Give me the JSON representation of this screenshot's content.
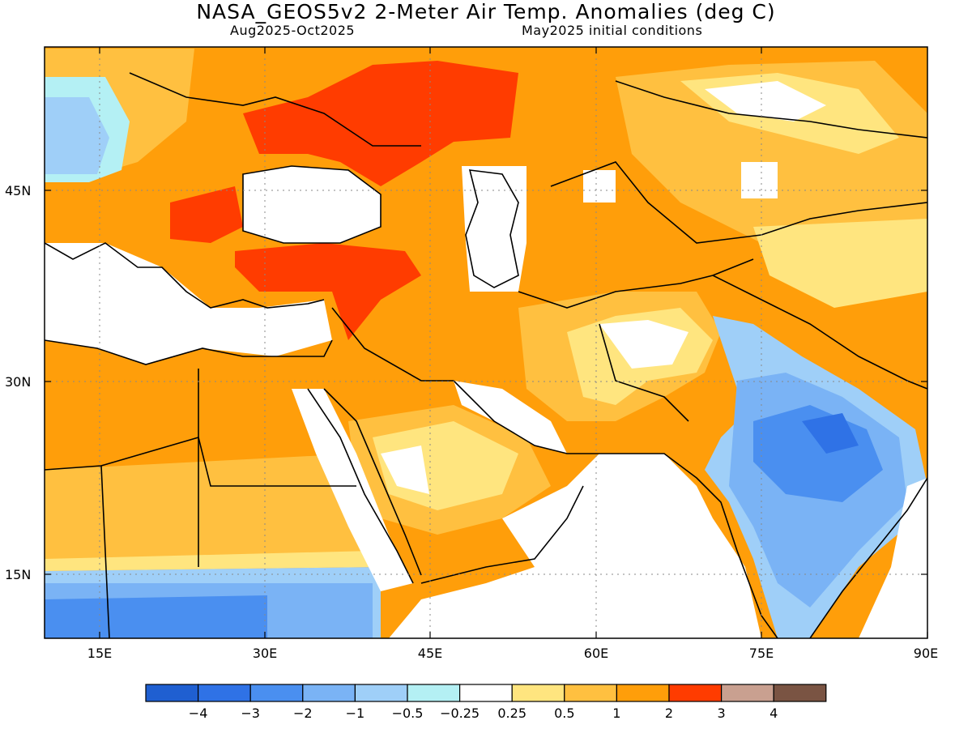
{
  "header": {
    "title": "NASA_GEOS5v2 2-Meter Air Temp. Anomalies (deg C)",
    "period": "Aug2025-Oct2025",
    "init": "May2025 initial conditions"
  },
  "axes": {
    "lat_labels": [
      "45N",
      "30N",
      "15N"
    ],
    "lon_labels": [
      "15E",
      "30E",
      "45E",
      "60E",
      "75E",
      "90E"
    ]
  },
  "legend": {
    "bins": [
      {
        "color": "#1f5fd1"
      },
      {
        "color": "#2f72e6"
      },
      {
        "color": "#4a8ff0"
      },
      {
        "color": "#7ab3f5"
      },
      {
        "color": "#9fcff8"
      },
      {
        "color": "#b4f0f4"
      },
      {
        "color": "#ffffff"
      },
      {
        "color": "#ffe57f"
      },
      {
        "color": "#ffc040"
      },
      {
        "color": "#ff9e0a"
      },
      {
        "color": "#ff3c00"
      },
      {
        "color": "#c9a090"
      },
      {
        "color": "#7a5443"
      }
    ],
    "tick_labels": [
      "-4",
      "-3",
      "-2",
      "-1",
      "-0.5",
      "-0.25",
      "0.25",
      "0.5",
      "1",
      "2",
      "3",
      "4"
    ]
  }
}
